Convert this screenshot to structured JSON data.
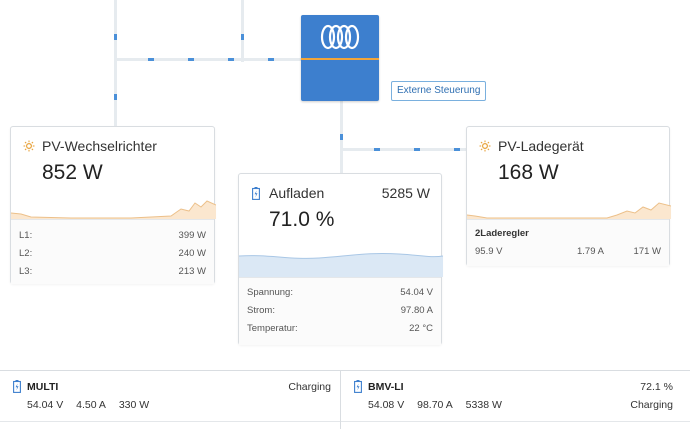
{
  "colors": {
    "accent": "#3d7fce",
    "stripe": "#f2a53a",
    "sun": "#e8a33c",
    "spark_fill": "#fbe7cf",
    "spark_blue": "#dbe8f5"
  },
  "external_control": {
    "label": "Externe Steuerung"
  },
  "pv_inverter": {
    "icon": "sun-icon",
    "title": "PV-Wechselrichter",
    "power": "852 W",
    "rows": [
      {
        "label": "L1:",
        "value": "399 W"
      },
      {
        "label": "L2:",
        "value": "240 W"
      },
      {
        "label": "L3:",
        "value": "213 W"
      }
    ]
  },
  "battery": {
    "icon": "battery-icon",
    "title": "Aufladen",
    "power": "5285 W",
    "soc": "71.0 %",
    "rows": [
      {
        "label": "Spannung:",
        "value": "54.04 V"
      },
      {
        "label": "Strom:",
        "value": "97.80 A"
      },
      {
        "label": "Temperatur:",
        "value": "22 °C"
      }
    ]
  },
  "pv_charger": {
    "icon": "sun-icon",
    "title": "PV-Ladegerät",
    "power": "168 W",
    "sub_title": "2Laderegler",
    "values": [
      "95.9 V",
      "1.79 A",
      "171 W"
    ]
  },
  "bottom": {
    "multi": {
      "icon": "battery-icon",
      "name": "MULTI",
      "status": "Charging",
      "values": [
        "54.04 V",
        "4.50 A",
        "330 W"
      ]
    },
    "bmv": {
      "icon": "battery-icon",
      "name": "BMV-LI",
      "soc": "72.1 %",
      "status": "Charging",
      "values": [
        "54.08 V",
        "98.70 A",
        "5338 W"
      ]
    }
  }
}
